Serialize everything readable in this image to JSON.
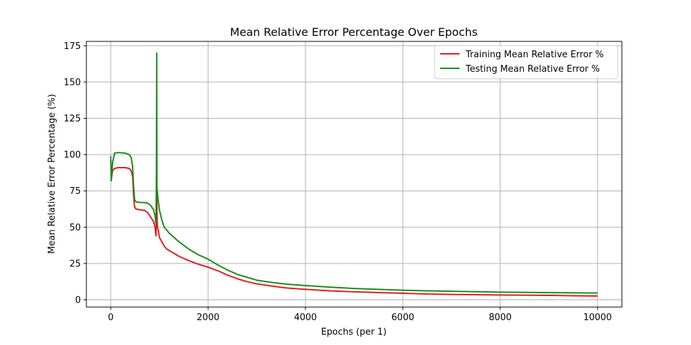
{
  "chart_data": {
    "type": "line",
    "title": "Mean Relative Error Percentage Over Epochs",
    "xlabel": "Epochs (per 1)",
    "ylabel": "Mean Relative Error Percentage (%)",
    "xlim": [
      -500,
      10500
    ],
    "ylim": [
      -5,
      178
    ],
    "xticks": [
      0,
      2000,
      4000,
      6000,
      8000,
      10000
    ],
    "yticks": [
      0,
      25,
      50,
      75,
      100,
      125,
      150,
      175
    ],
    "grid": true,
    "legend_position": "top-right",
    "series": [
      {
        "name": "Training Mean Relative Error %",
        "color": "#e31a1c",
        "points": [
          [
            0,
            96
          ],
          [
            12,
            83
          ],
          [
            40,
            89
          ],
          [
            80,
            90.5
          ],
          [
            150,
            91
          ],
          [
            300,
            91
          ],
          [
            380,
            90.5
          ],
          [
            420,
            89
          ],
          [
            450,
            85
          ],
          [
            470,
            72
          ],
          [
            490,
            64
          ],
          [
            520,
            62.5
          ],
          [
            600,
            62
          ],
          [
            700,
            61.5
          ],
          [
            760,
            60
          ],
          [
            820,
            57
          ],
          [
            880,
            54
          ],
          [
            910,
            50
          ],
          [
            930,
            44
          ],
          [
            940,
            60
          ],
          [
            945,
            102
          ],
          [
            950,
            60
          ],
          [
            960,
            50
          ],
          [
            980,
            47
          ],
          [
            1000,
            43
          ],
          [
            1050,
            40
          ],
          [
            1100,
            37
          ],
          [
            1150,
            35
          ],
          [
            1250,
            33
          ],
          [
            1400,
            30
          ],
          [
            1600,
            27
          ],
          [
            1800,
            24.5
          ],
          [
            2000,
            22.5
          ],
          [
            2200,
            20
          ],
          [
            2400,
            17
          ],
          [
            2600,
            14.5
          ],
          [
            2800,
            12.5
          ],
          [
            3000,
            11
          ],
          [
            3300,
            9.5
          ],
          [
            3600,
            8.2
          ],
          [
            4000,
            7.2
          ],
          [
            4500,
            6.2
          ],
          [
            5000,
            5.5
          ],
          [
            5500,
            5
          ],
          [
            6000,
            4.5
          ],
          [
            6500,
            4
          ],
          [
            7000,
            3.7
          ],
          [
            7500,
            3.5
          ],
          [
            8000,
            3.3
          ],
          [
            8500,
            3.2
          ],
          [
            9000,
            3.1
          ],
          [
            9500,
            2.8
          ],
          [
            10000,
            2.6
          ]
        ]
      },
      {
        "name": "Testing Mean Relative Error %",
        "color": "#1a8a1a",
        "points": [
          [
            0,
            99
          ],
          [
            12,
            82
          ],
          [
            40,
            95
          ],
          [
            80,
            101
          ],
          [
            150,
            101.5
          ],
          [
            300,
            101
          ],
          [
            380,
            100
          ],
          [
            420,
            98
          ],
          [
            450,
            92
          ],
          [
            470,
            78
          ],
          [
            490,
            69
          ],
          [
            520,
            67.5
          ],
          [
            600,
            67
          ],
          [
            700,
            67
          ],
          [
            760,
            66.5
          ],
          [
            820,
            65
          ],
          [
            880,
            62
          ],
          [
            910,
            58
          ],
          [
            930,
            52
          ],
          [
            940,
            90
          ],
          [
            945,
            170
          ],
          [
            950,
            78
          ],
          [
            970,
            70
          ],
          [
            1000,
            62
          ],
          [
            1050,
            55
          ],
          [
            1100,
            50
          ],
          [
            1200,
            46
          ],
          [
            1300,
            43
          ],
          [
            1400,
            40
          ],
          [
            1600,
            35
          ],
          [
            1800,
            31
          ],
          [
            2000,
            28
          ],
          [
            2200,
            24
          ],
          [
            2400,
            20.5
          ],
          [
            2600,
            17.5
          ],
          [
            2800,
            15.5
          ],
          [
            3000,
            13.5
          ],
          [
            3300,
            12
          ],
          [
            3600,
            10.8
          ],
          [
            4000,
            9.8
          ],
          [
            4500,
            8.7
          ],
          [
            5000,
            7.8
          ],
          [
            5500,
            7.2
          ],
          [
            6000,
            6.6
          ],
          [
            6500,
            6.2
          ],
          [
            7000,
            5.9
          ],
          [
            7500,
            5.6
          ],
          [
            8000,
            5.3
          ],
          [
            8500,
            5.1
          ],
          [
            9000,
            4.9
          ],
          [
            9500,
            4.8
          ],
          [
            10000,
            4.7
          ]
        ]
      }
    ]
  }
}
